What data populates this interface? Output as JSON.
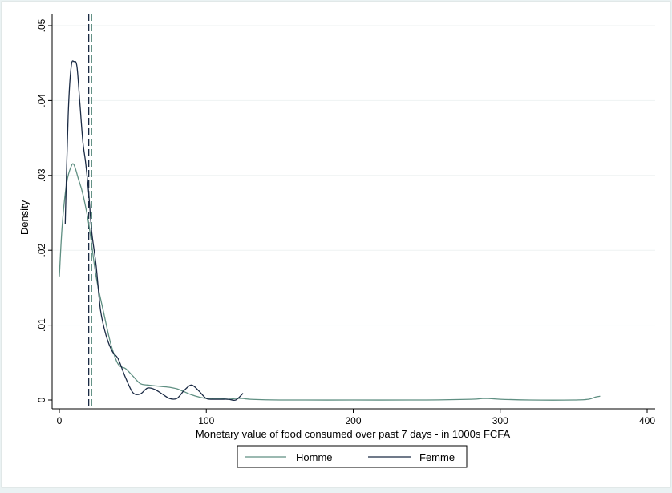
{
  "chart_data": {
    "type": "line",
    "title": "",
    "xlabel": "Monetary value of food consumed over past 7 days - in 1000s FCFA",
    "ylabel": "Density",
    "xlim": [
      0,
      400
    ],
    "ylim": [
      0,
      0.05
    ],
    "xticks": [
      0,
      100,
      200,
      300,
      400
    ],
    "xtick_labels": [
      "0",
      "100",
      "200",
      "300",
      "400"
    ],
    "yticks": [
      0,
      0.01,
      0.02,
      0.03,
      0.04,
      0.05
    ],
    "ytick_labels": [
      "0",
      ".01",
      ".02",
      ".03",
      ".04",
      ".05"
    ],
    "grid": "horizontal",
    "legend_position": "bottom-center",
    "series": [
      {
        "name": "Homme",
        "color": "#5f8f82",
        "x": [
          0,
          2,
          5,
          8,
          10,
          13,
          16,
          20,
          25,
          30,
          35,
          40,
          45,
          50,
          55,
          60,
          65,
          70,
          75,
          80,
          85,
          90,
          95,
          100,
          105,
          110,
          115,
          120,
          125,
          130,
          150,
          200,
          250,
          280,
          288,
          292,
          300,
          320,
          350,
          360,
          365,
          368
        ],
        "y": [
          0.0165,
          0.0235,
          0.029,
          0.0312,
          0.0314,
          0.0295,
          0.0275,
          0.0235,
          0.0165,
          0.0118,
          0.0075,
          0.0048,
          0.0042,
          0.0032,
          0.0022,
          0.002,
          0.0019,
          0.0018,
          0.0017,
          0.0015,
          0.0011,
          0.0007,
          0.0004,
          0.0002,
          0.0002,
          0.0002,
          0.0001,
          0.0002,
          0.0002,
          0.0001,
          0.0,
          0.0,
          0.0,
          0.0001,
          0.0002,
          0.0002,
          0.0001,
          0.0,
          0.0,
          0.0001,
          0.0004,
          0.0005
        ]
      },
      {
        "name": "Femme",
        "color": "#1a2a44",
        "x": [
          4,
          6,
          8,
          10,
          12,
          14,
          16,
          18,
          20,
          22,
          25,
          28,
          32,
          36,
          40,
          45,
          50,
          55,
          60,
          65,
          70,
          75,
          80,
          85,
          90,
          95,
          100,
          105,
          110,
          115,
          120,
          125
        ],
        "y": [
          0.0235,
          0.038,
          0.0445,
          0.0452,
          0.0445,
          0.0395,
          0.0345,
          0.0315,
          0.0275,
          0.0225,
          0.018,
          0.012,
          0.0085,
          0.0065,
          0.0055,
          0.003,
          0.001,
          0.0008,
          0.0016,
          0.0014,
          0.0008,
          0.0002,
          0.0002,
          0.0013,
          0.002,
          0.0012,
          0.0002,
          0.0001,
          0.0001,
          0.0001,
          0.0,
          0.0009
        ]
      }
    ],
    "reference_lines": [
      {
        "x": 20,
        "color": "#1a2a44",
        "style": "dashed"
      },
      {
        "x": 22,
        "color": "#5f8f82",
        "style": "dashed"
      }
    ]
  }
}
